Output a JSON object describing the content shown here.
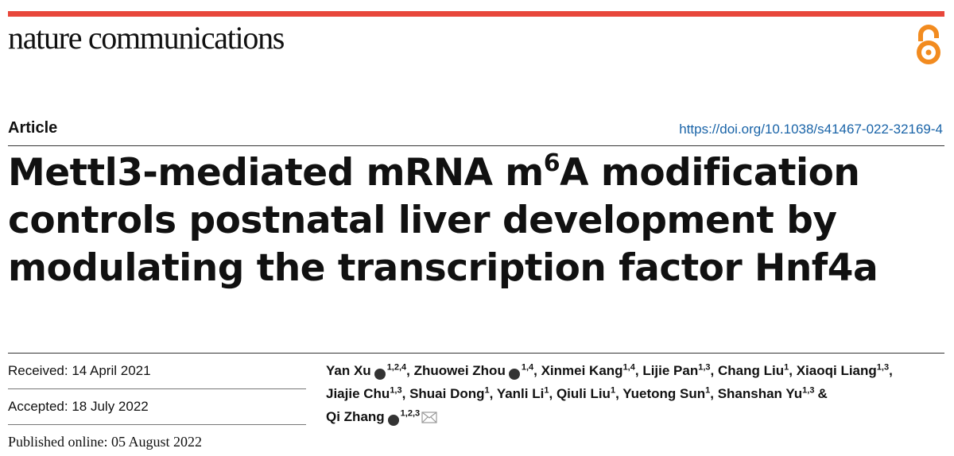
{
  "header": {
    "journal": "nature communications",
    "open_access": true
  },
  "article": {
    "type": "Article",
    "doi": "https://doi.org/10.1038/s41467-022-32169-4",
    "title": {
      "before": "Mettl3-mediated mRNA m",
      "sup": "6",
      "after": "A modification controls postnatal liver development by modulating the transcription factor Hnf4a"
    }
  },
  "dates": {
    "received": "Received: 14 April 2021",
    "accepted": "Accepted: 18 July 2022",
    "published": "Published online: 05 August 2022"
  },
  "authors": [
    {
      "name": "Yan Xu",
      "orcid": true,
      "affiliations": "1,2,4",
      "after": ","
    },
    {
      "name": "Zhuowei Zhou",
      "orcid": true,
      "affiliations": "1,4",
      "after": ","
    },
    {
      "name": "Xinmei Kang",
      "orcid": false,
      "affiliations": "1,4",
      "after": ","
    },
    {
      "name": "Lijie Pan",
      "orcid": false,
      "affiliations": "1,3",
      "after": ","
    },
    {
      "name": "Chang Liu",
      "orcid": false,
      "affiliations": "1",
      "after": ","
    },
    {
      "name": "Xiaoqi Liang",
      "orcid": false,
      "affiliations": "1,3",
      "after": ","
    },
    {
      "name": "Jiajie Chu",
      "orcid": false,
      "affiliations": "1,3",
      "after": ","
    },
    {
      "name": "Shuai Dong",
      "orcid": false,
      "affiliations": "1",
      "after": ","
    },
    {
      "name": "Yanli Li",
      "orcid": false,
      "affiliations": "1",
      "after": ","
    },
    {
      "name": "Qiuli Liu",
      "orcid": false,
      "affiliations": "1",
      "after": ","
    },
    {
      "name": "Yuetong Sun",
      "orcid": false,
      "affiliations": "1",
      "after": ","
    },
    {
      "name": "Shanshan Yu",
      "orcid": false,
      "affiliations": "1,3",
      "after": "&"
    },
    {
      "name": "Qi Zhang",
      "orcid": true,
      "affiliations": "1,2,3",
      "corresponding": true
    }
  ]
}
